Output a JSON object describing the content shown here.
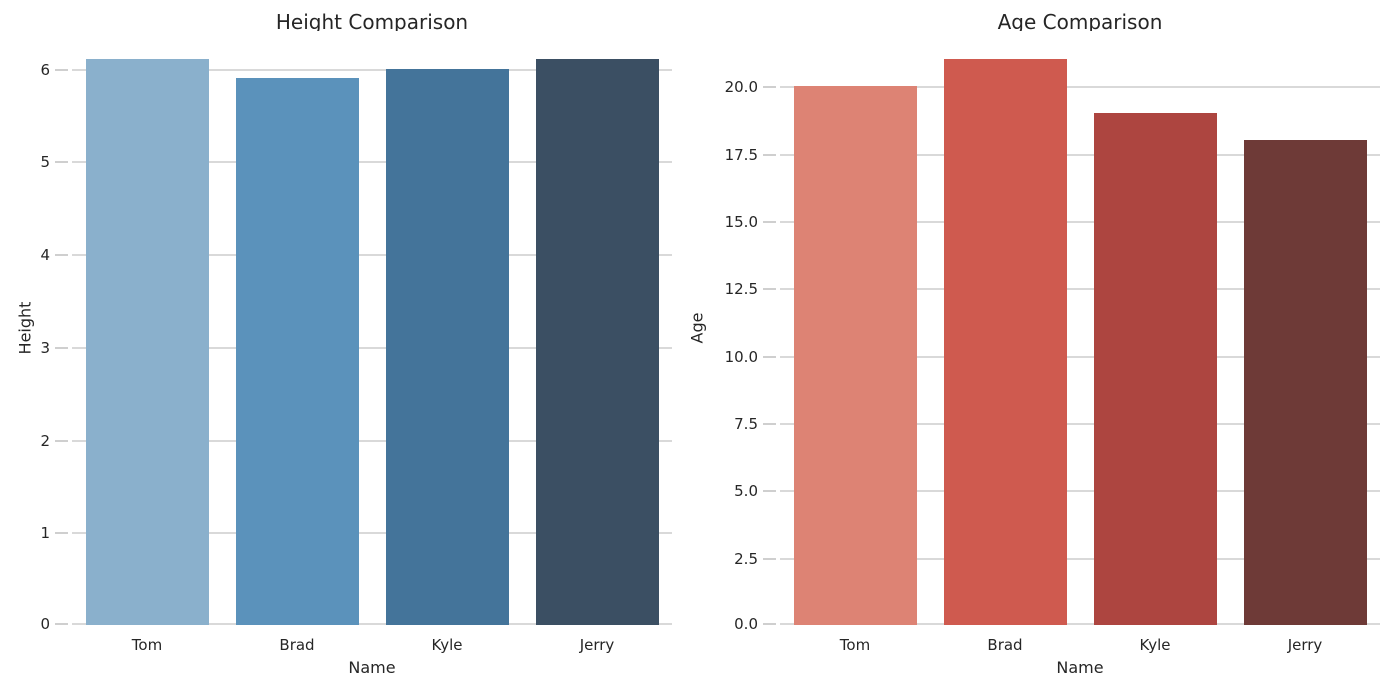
{
  "style": {
    "background": "#ffffff",
    "text_color": "#262626",
    "grid_color": "#d9d9d9",
    "tick_color": "#cfcfcf"
  },
  "chart_data": [
    {
      "type": "bar",
      "title": "Height Comparison",
      "xlabel": "Name",
      "ylabel": "Height",
      "categories": [
        "Tom",
        "Brad",
        "Kyle",
        "Jerry"
      ],
      "values": [
        6.1,
        5.9,
        6.0,
        6.1
      ],
      "bar_colors": [
        "#8ab0cc",
        "#5b92bb",
        "#44749a",
        "#3b4f63"
      ],
      "ylim": [
        0,
        6.405
      ],
      "yticks": [
        0,
        1,
        2,
        3,
        4,
        5,
        6
      ],
      "ytick_labels": [
        "0",
        "1",
        "2",
        "3",
        "4",
        "5",
        "6"
      ],
      "grid": true,
      "legend_position": "none"
    },
    {
      "type": "bar",
      "title": "Age Comparison",
      "xlabel": "Name",
      "ylabel": "Age",
      "categories": [
        "Tom",
        "Brad",
        "Kyle",
        "Jerry"
      ],
      "values": [
        20,
        21,
        19,
        18
      ],
      "bar_colors": [
        "#dd8374",
        "#cf5a4f",
        "#ad4540",
        "#6e3a37"
      ],
      "ylim": [
        0,
        22.05
      ],
      "yticks": [
        0,
        2.5,
        5,
        7.5,
        10,
        12.5,
        15,
        17.5,
        20
      ],
      "ytick_labels": [
        "0.0",
        "2.5",
        "5.0",
        "7.5",
        "10.0",
        "12.5",
        "15.0",
        "17.5",
        "20.0"
      ],
      "grid": true,
      "legend_position": "none"
    }
  ]
}
